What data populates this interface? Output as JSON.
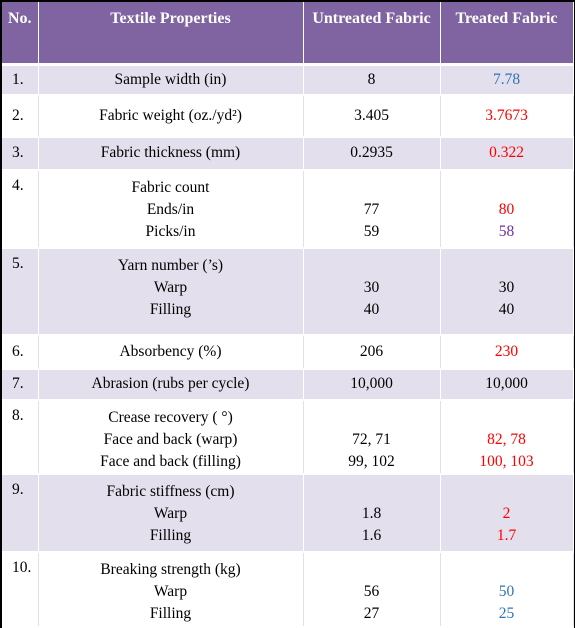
{
  "header": {
    "no": "No.",
    "property": "Textile Properties",
    "untreated": "Untreated Fabric",
    "treated": "Treated Fabric"
  },
  "rows": [
    {
      "no": "1.",
      "property": "Sample width (in)",
      "untreated": "8",
      "treated": "7.78",
      "treated_color": "#2e75b6"
    },
    {
      "no": "2.",
      "property": "Fabric weight (oz./yd²)",
      "untreated": "3.405",
      "treated": "3.7673",
      "treated_color": "#ff0000"
    },
    {
      "no": "3.",
      "property": "Fabric thickness (mm)",
      "untreated": "0.2935",
      "treated": "0.322",
      "treated_color": "#ff0000"
    },
    {
      "no": "4.",
      "property": "Fabric count",
      "sub": [
        {
          "label": "Ends/in",
          "untreated": "77",
          "treated": "80",
          "treated_color": "#ff0000"
        },
        {
          "label": "Picks/in",
          "untreated": "59",
          "treated": "58",
          "treated_color": "#7030a0"
        }
      ]
    },
    {
      "no": "5.",
      "property": "Yarn number (’s)",
      "sub": [
        {
          "label": "Warp",
          "untreated": "30",
          "treated": "30",
          "treated_color": "#000000"
        },
        {
          "label": "Filling",
          "untreated": "40",
          "treated": "40",
          "treated_color": "#000000"
        }
      ]
    },
    {
      "no": "6.",
      "property": "Absorbency (%)",
      "untreated": "206",
      "treated": "230",
      "treated_color": "#ff0000"
    },
    {
      "no": "7.",
      "property": "Abrasion (rubs per cycle)",
      "untreated": "10,000",
      "treated": "10,000",
      "treated_color": "#000000"
    },
    {
      "no": "8.",
      "property": "Crease recovery ( °)",
      "sub": [
        {
          "label": "Face and back (warp)",
          "untreated": "72, 71",
          "treated": "82, 78",
          "treated_color": "#ff0000"
        },
        {
          "label": "Face and back (filling)",
          "untreated": "99, 102",
          "treated": "100, 103",
          "treated_color": "#ff0000"
        }
      ]
    },
    {
      "no": "9.",
      "property": "Fabric stiffness (cm)",
      "sub": [
        {
          "label": "Warp",
          "untreated": "1.8",
          "treated": "2",
          "treated_color": "#ff0000"
        },
        {
          "label": "Filling",
          "untreated": "1.6",
          "treated": "1.7",
          "treated_color": "#ff0000"
        }
      ]
    },
    {
      "no": "10.",
      "property": "Breaking strength (kg)",
      "sub": [
        {
          "label": "Warp",
          "untreated": "56",
          "treated": "50",
          "treated_color": "#2e75b6"
        },
        {
          "label": "Filling",
          "untreated": "27",
          "treated": "25",
          "treated_color": "#2e75b6"
        }
      ]
    }
  ]
}
